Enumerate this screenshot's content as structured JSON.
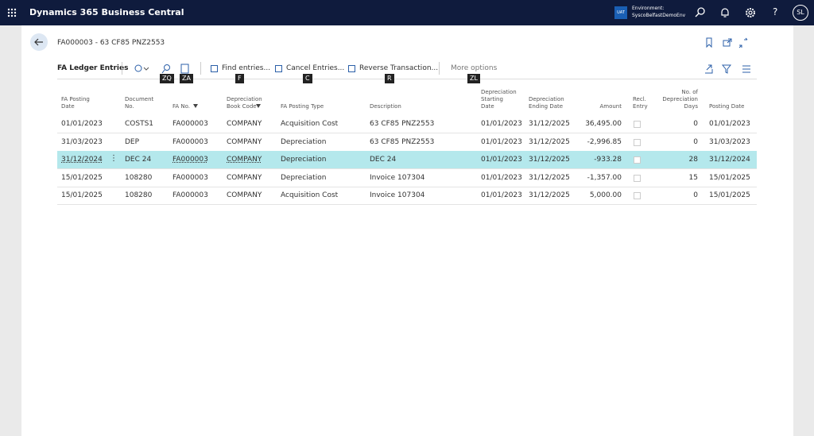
{
  "top_bar": {
    "app_title": "Dynamics 365 Business Central",
    "environment_badge": "UAT",
    "environment_label": "Environment:",
    "environment_name": "SyscoBelfastDemoEnv",
    "help": "?",
    "avatar": "SL"
  },
  "page": {
    "title": "FA000003 - 63 CF85 PNZ2553"
  },
  "action_bar": {
    "page_name": "FA Ledger Entries",
    "actions": [
      "Find entries...",
      "Cancel Entries...",
      "Reverse Transaction...",
      "More options"
    ],
    "key_tips": [
      "ZQ",
      "ZA",
      "F",
      "C",
      "R",
      "ZL"
    ]
  },
  "table": {
    "columns": [
      [
        "FA Posting",
        "Date"
      ],
      [
        "Document",
        "No."
      ],
      [
        "FA No."
      ],
      [
        "Depreciation",
        "Book Code"
      ],
      [
        "FA Posting Type"
      ],
      [
        "Description"
      ],
      [
        "Depreciation",
        "Starting",
        "Date"
      ],
      [
        "Depreciation",
        "Ending Date"
      ],
      [
        "Amount"
      ],
      [
        "Recl.",
        "Entry"
      ],
      [
        "No. of",
        "Depreciation",
        "Days"
      ],
      [
        "Posting Date"
      ]
    ],
    "selected_row": 2,
    "rows": [
      [
        "01/01/2023",
        "COSTS1",
        "FA000003",
        "COMPANY",
        "Acquisition Cost",
        "63 CF85 PNZ2553",
        "01/01/2023",
        "31/12/2025",
        "36,495.00",
        false,
        "0",
        "01/01/2023"
      ],
      [
        "31/03/2023",
        "DEP",
        "FA000003",
        "COMPANY",
        "Depreciation",
        "63 CF85 PNZ2553",
        "01/01/2023",
        "31/12/2025",
        "-2,996.85",
        false,
        "0",
        "31/03/2023"
      ],
      [
        "31/12/2024",
        "DEC 24",
        "FA000003",
        "COMPANY",
        "Depreciation",
        "DEC 24",
        "01/01/2023",
        "31/12/2025",
        "-933.28",
        false,
        "28",
        "31/12/2024"
      ],
      [
        "15/01/2025",
        "108280",
        "FA000003",
        "COMPANY",
        "Depreciation",
        "Invoice 107304",
        "01/01/2023",
        "31/12/2025",
        "-1,357.00",
        false,
        "15",
        "15/01/2025"
      ],
      [
        "15/01/2025",
        "108280",
        "FA000003",
        "COMPANY",
        "Acquisition Cost",
        "Invoice 107304",
        "01/01/2023",
        "31/12/2025",
        "5,000.00",
        false,
        "0",
        "15/01/2025"
      ]
    ]
  }
}
